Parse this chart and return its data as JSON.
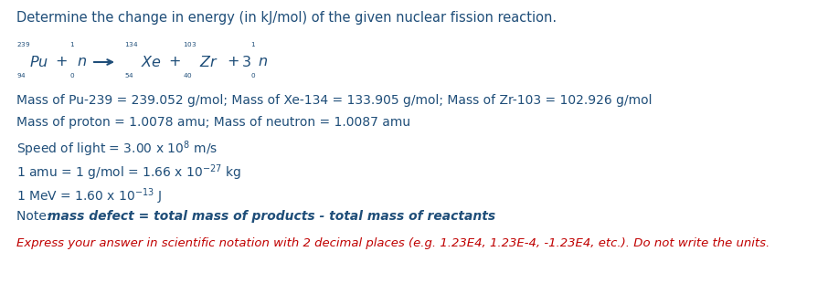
{
  "bg_color": "#ffffff",
  "dark_blue": "#1F4E79",
  "red": "#C00000",
  "title": "Determine the change in energy (in kJ/mol) of the given nuclear fission reaction.",
  "mass_line1": "Mass of Pu-239 = 239.052 g/mol; Mass of Xe-134 = 133.905 g/mol; Mass of Zr-103 = 102.926 g/mol",
  "mass_line2": "Mass of proton = 1.0078 amu; Mass of neutron = 1.0087 amu",
  "note_plain": "Note: ",
  "note_bold_italic": "mass defect = total mass of products - total mass of reactants",
  "answer": "Express your answer in scientific notation with 2 decimal places (e.g. 1.23E4, 1.23E-4, -1.23E4, etc.). Do not write the units.",
  "figwidth": 9.06,
  "figheight": 3.1,
  "dpi": 100
}
